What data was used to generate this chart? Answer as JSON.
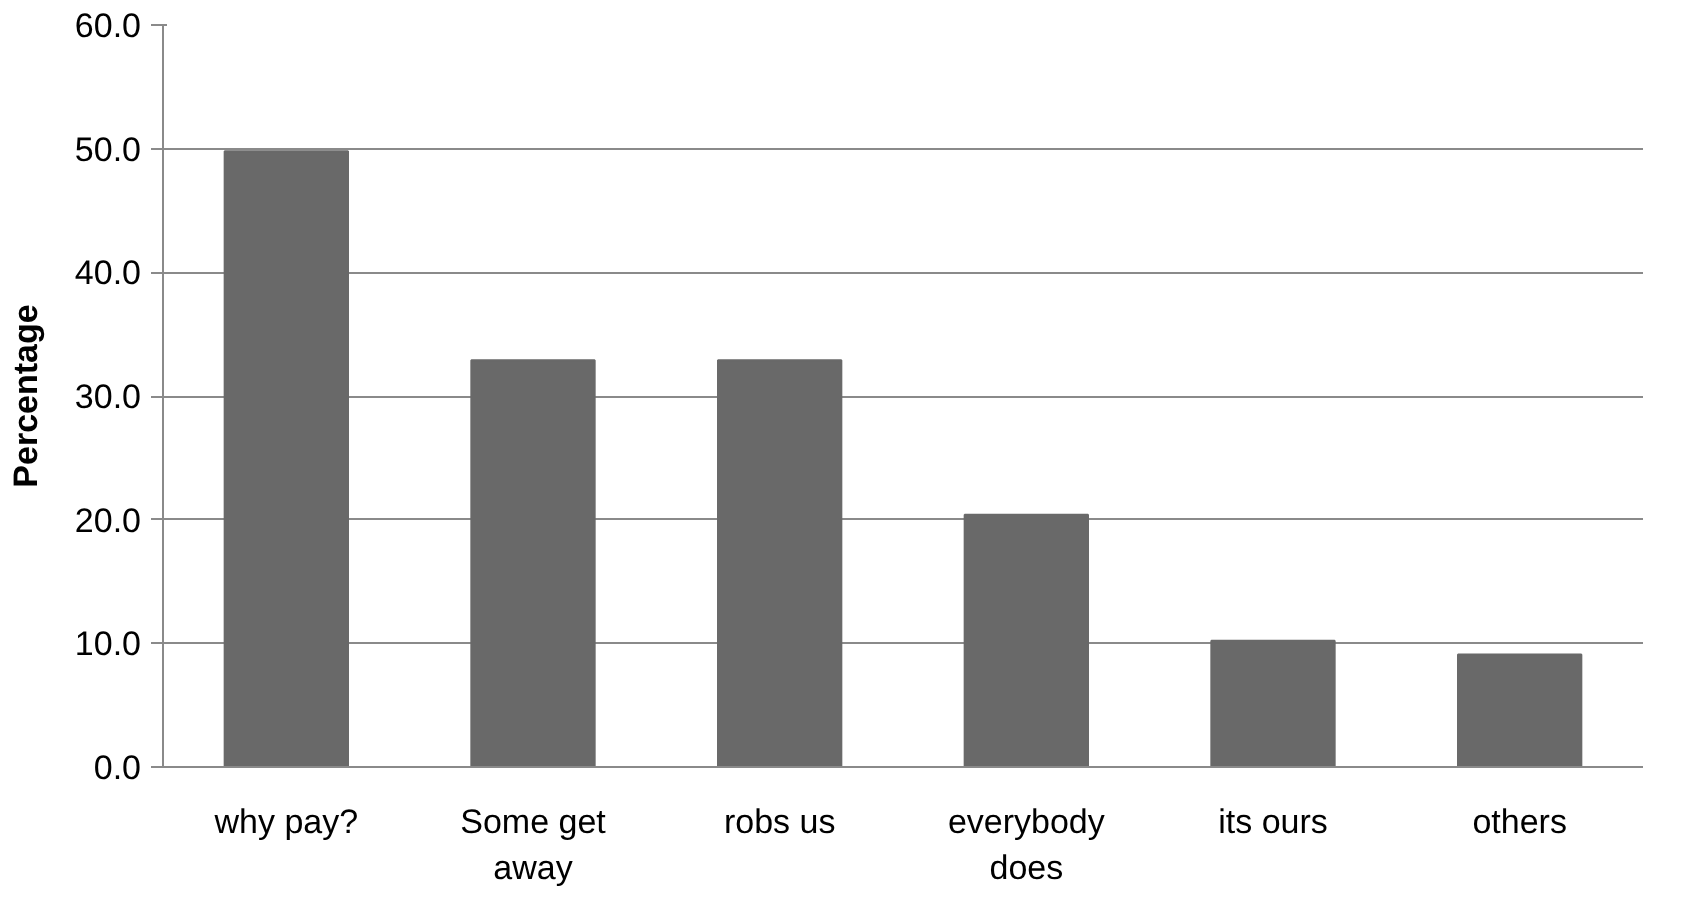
{
  "chart_data": {
    "type": "bar",
    "ylabel": "Percentage",
    "categories": [
      "why pay?",
      "Some get away",
      "robs us",
      "everybody does",
      "its ours",
      "others"
    ],
    "values": [
      49.8,
      32.9,
      32.9,
      20.4,
      10.2,
      9.1
    ],
    "color": "#696969",
    "ylim": [
      0,
      60
    ],
    "yticks": [
      {
        "value": 0,
        "label": "0.0"
      },
      {
        "value": 10,
        "label": "10.0"
      },
      {
        "value": 20,
        "label": "20.0"
      },
      {
        "value": 30,
        "label": "30.0"
      },
      {
        "value": 40,
        "label": "40.0"
      },
      {
        "value": 50,
        "label": "50.0"
      },
      {
        "value": 60,
        "label": "60.0"
      }
    ],
    "grid": "y"
  }
}
